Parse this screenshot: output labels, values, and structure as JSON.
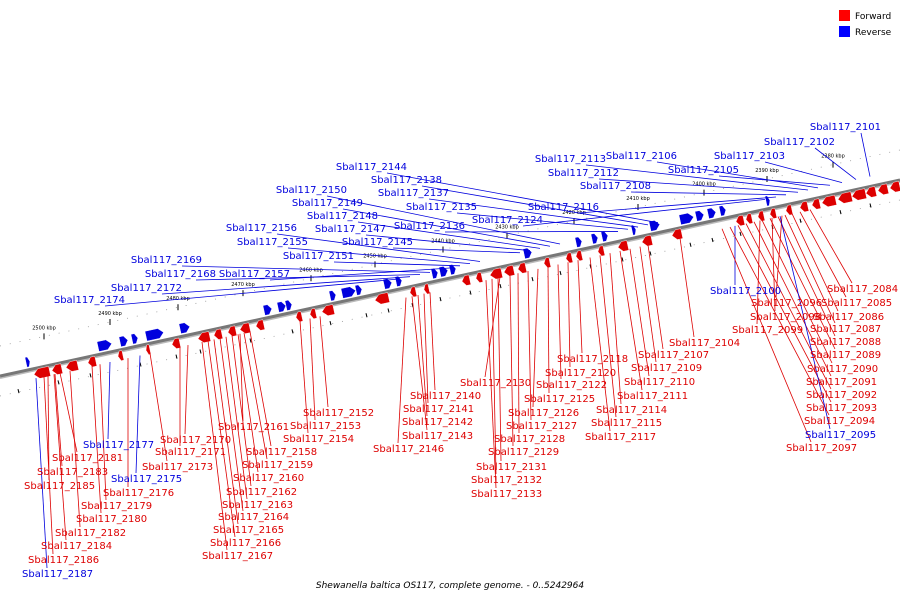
{
  "caption": "Shewanella baltica OS117, complete genome. - 0..5242964",
  "legend": [
    {
      "label": "Forward",
      "color": "#ff0000"
    },
    {
      "label": "Reverse",
      "color": "#0000ff"
    }
  ],
  "colors": {
    "forward": "#dd0000",
    "reverse": "#0000dd",
    "axis": "#777777"
  },
  "ticks": [
    "2380 kbp",
    "2390 kbp",
    "2400 kbp",
    "2410 kbp",
    "2420 kbp",
    "2430 kbp",
    "2440 kbp",
    "2450 kbp",
    "2460 kbp",
    "2470 kbp",
    "2480 kbp",
    "2490 kbp",
    "2500 kbp"
  ],
  "genes": [
    {
      "id": "Sbal117_2101",
      "strand": "reverse"
    },
    {
      "id": "Sbal117_2102",
      "strand": "reverse"
    },
    {
      "id": "Sbal117_2103",
      "strand": "reverse"
    },
    {
      "id": "Sbal117_2105",
      "strand": "reverse"
    },
    {
      "id": "Sbal117_2106",
      "strand": "reverse"
    },
    {
      "id": "Sbal117_2113",
      "strand": "reverse"
    },
    {
      "id": "Sbal117_2112",
      "strand": "reverse"
    },
    {
      "id": "Sbal117_2108",
      "strand": "reverse"
    },
    {
      "id": "Sbal117_2116",
      "strand": "reverse"
    },
    {
      "id": "Sbal117_2124",
      "strand": "reverse"
    },
    {
      "id": "Sbal117_2144",
      "strand": "reverse"
    },
    {
      "id": "Sbal117_2138",
      "strand": "reverse"
    },
    {
      "id": "Sbal117_2137",
      "strand": "reverse"
    },
    {
      "id": "Sbal117_2135",
      "strand": "reverse"
    },
    {
      "id": "Sbal117_2136",
      "strand": "reverse"
    },
    {
      "id": "Sbal117_2150",
      "strand": "reverse"
    },
    {
      "id": "Sbal117_2149",
      "strand": "reverse"
    },
    {
      "id": "Sbal117_2148",
      "strand": "reverse"
    },
    {
      "id": "Sbal117_2147",
      "strand": "reverse"
    },
    {
      "id": "Sbal117_2145",
      "strand": "reverse"
    },
    {
      "id": "Sbal117_2156",
      "strand": "reverse"
    },
    {
      "id": "Sbal117_2155",
      "strand": "reverse"
    },
    {
      "id": "Sbal117_2151",
      "strand": "reverse"
    },
    {
      "id": "Sbal117_2157",
      "strand": "reverse"
    },
    {
      "id": "Sbal117_2169",
      "strand": "reverse"
    },
    {
      "id": "Sbal117_2168",
      "strand": "reverse"
    },
    {
      "id": "Sbal117_2172",
      "strand": "reverse"
    },
    {
      "id": "Sbal117_2174",
      "strand": "reverse"
    },
    {
      "id": "Sbal117_2100",
      "strand": "reverse"
    },
    {
      "id": "Sbal117_2084",
      "strand": "forward"
    },
    {
      "id": "Sbal117_2085",
      "strand": "forward"
    },
    {
      "id": "Sbal117_2096",
      "strand": "forward"
    },
    {
      "id": "Sbal117_2086",
      "strand": "forward"
    },
    {
      "id": "Sbal117_2098",
      "strand": "forward"
    },
    {
      "id": "Sbal117_2087",
      "strand": "forward"
    },
    {
      "id": "Sbal117_2099",
      "strand": "forward"
    },
    {
      "id": "Sbal117_2088",
      "strand": "forward"
    },
    {
      "id": "Sbal117_2104",
      "strand": "forward"
    },
    {
      "id": "Sbal117_2089",
      "strand": "forward"
    },
    {
      "id": "Sbal117_2107",
      "strand": "forward"
    },
    {
      "id": "Sbal117_2118",
      "strand": "forward"
    },
    {
      "id": "Sbal117_2090",
      "strand": "forward"
    },
    {
      "id": "Sbal117_2109",
      "strand": "forward"
    },
    {
      "id": "Sbal117_2120",
      "strand": "forward"
    },
    {
      "id": "Sbal117_2091",
      "strand": "forward"
    },
    {
      "id": "Sbal117_2110",
      "strand": "forward"
    },
    {
      "id": "Sbal117_2130",
      "strand": "forward"
    },
    {
      "id": "Sbal117_2122",
      "strand": "forward"
    },
    {
      "id": "Sbal117_2092",
      "strand": "forward"
    },
    {
      "id": "Sbal117_2140",
      "strand": "forward"
    },
    {
      "id": "Sbal117_2125",
      "strand": "forward"
    },
    {
      "id": "Sbal117_2111",
      "strand": "forward"
    },
    {
      "id": "Sbal117_2093",
      "strand": "forward"
    },
    {
      "id": "Sbal117_2141",
      "strand": "forward"
    },
    {
      "id": "Sbal117_2126",
      "strand": "forward"
    },
    {
      "id": "Sbal117_2114",
      "strand": "forward"
    },
    {
      "id": "Sbal117_2094",
      "strand": "forward"
    },
    {
      "id": "Sbal117_2152",
      "strand": "forward"
    },
    {
      "id": "Sbal117_2142",
      "strand": "forward"
    },
    {
      "id": "Sbal117_2127",
      "strand": "forward"
    },
    {
      "id": "Sbal117_2115",
      "strand": "forward"
    },
    {
      "id": "Sbal117_2095",
      "strand": "reverse"
    },
    {
      "id": "Sbal117_2153",
      "strand": "forward"
    },
    {
      "id": "Sbal117_2143",
      "strand": "forward"
    },
    {
      "id": "Sbal117_2128",
      "strand": "forward"
    },
    {
      "id": "Sbal117_2117",
      "strand": "forward"
    },
    {
      "id": "Sbal117_2161",
      "strand": "forward"
    },
    {
      "id": "Sbal117_2170",
      "strand": "forward"
    },
    {
      "id": "Sbal117_2154",
      "strand": "forward"
    },
    {
      "id": "Sbal117_2146",
      "strand": "forward"
    },
    {
      "id": "Sbal117_2129",
      "strand": "forward"
    },
    {
      "id": "Sbal117_2097",
      "strand": "forward"
    },
    {
      "id": "Sbal117_2177",
      "strand": "reverse"
    },
    {
      "id": "Sbal117_2171",
      "strand": "forward"
    },
    {
      "id": "Sbal117_2158",
      "strand": "forward"
    },
    {
      "id": "Sbal117_2181",
      "strand": "forward"
    },
    {
      "id": "Sbal117_2173",
      "strand": "forward"
    },
    {
      "id": "Sbal117_2159",
      "strand": "forward"
    },
    {
      "id": "Sbal117_2131",
      "strand": "forward"
    },
    {
      "id": "Sbal117_2183",
      "strand": "forward"
    },
    {
      "id": "Sbal117_2175",
      "strand": "reverse"
    },
    {
      "id": "Sbal117_2160",
      "strand": "forward"
    },
    {
      "id": "Sbal117_2132",
      "strand": "forward"
    },
    {
      "id": "Sbal117_2185",
      "strand": "forward"
    },
    {
      "id": "Sbal117_2176",
      "strand": "forward"
    },
    {
      "id": "Sbal117_2162",
      "strand": "forward"
    },
    {
      "id": "Sbal117_2133",
      "strand": "forward"
    },
    {
      "id": "Sbal117_2179",
      "strand": "forward"
    },
    {
      "id": "Sbal117_2163",
      "strand": "forward"
    },
    {
      "id": "Sbal117_2180",
      "strand": "forward"
    },
    {
      "id": "Sbal117_2164",
      "strand": "forward"
    },
    {
      "id": "Sbal117_2182",
      "strand": "forward"
    },
    {
      "id": "Sbal117_2165",
      "strand": "forward"
    },
    {
      "id": "Sbal117_2166",
      "strand": "forward"
    },
    {
      "id": "Sbal117_2184",
      "strand": "forward"
    },
    {
      "id": "Sbal117_2167",
      "strand": "forward"
    },
    {
      "id": "Sbal117_2186",
      "strand": "forward"
    },
    {
      "id": "Sbal117_2187",
      "strand": "reverse"
    }
  ]
}
